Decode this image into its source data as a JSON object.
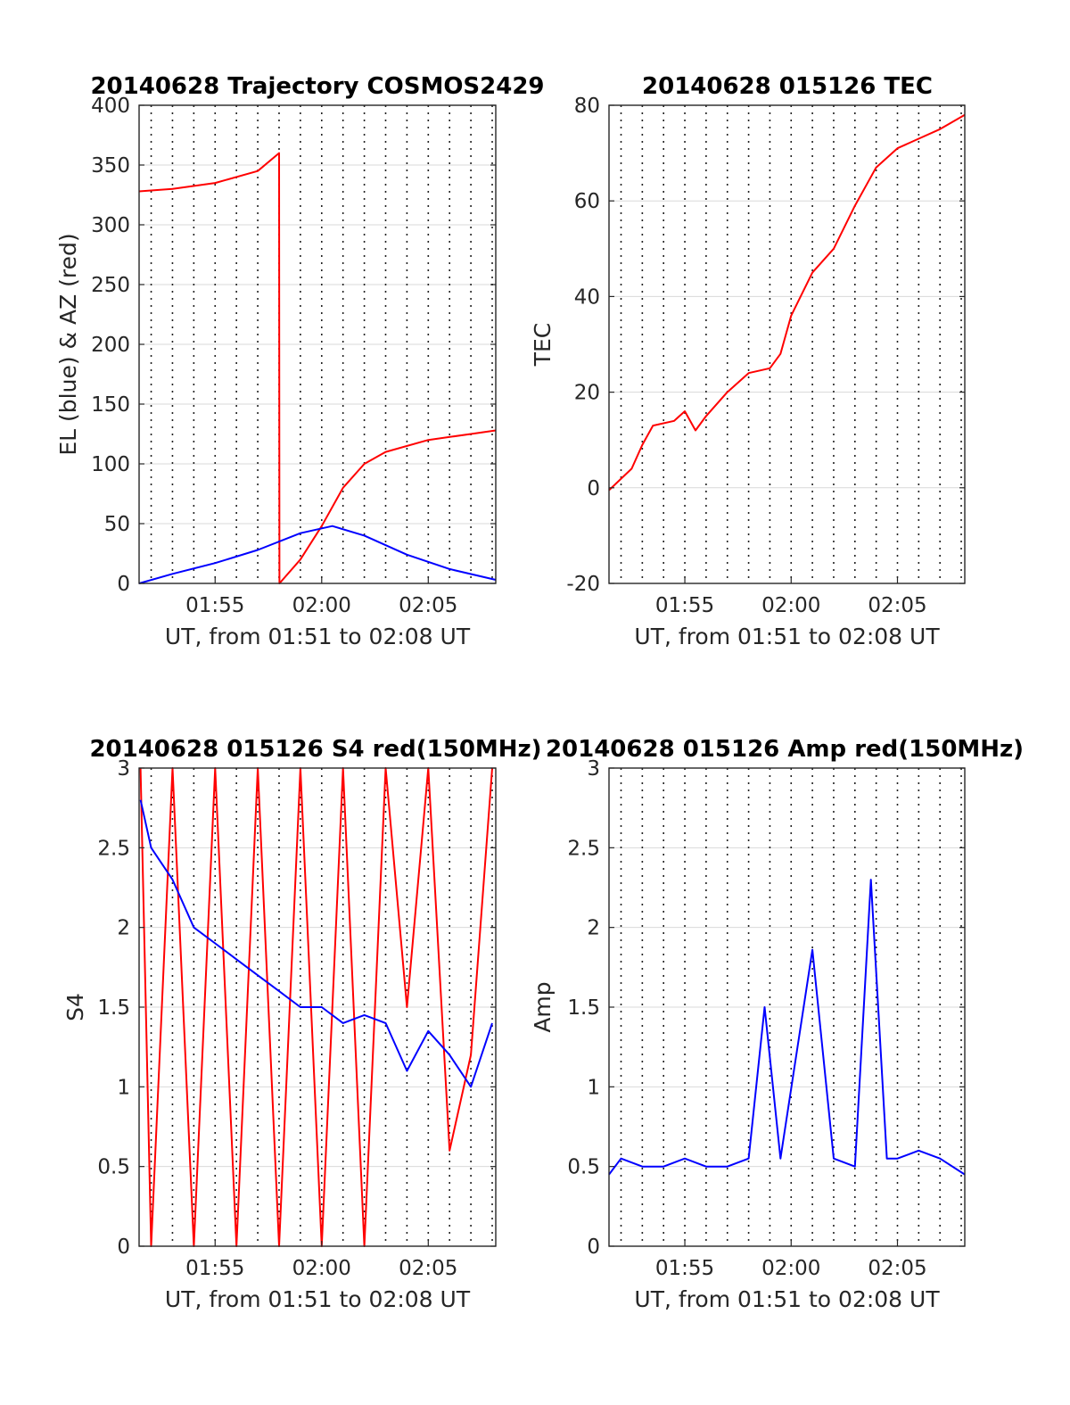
{
  "x_tick_labels": [
    "01:55",
    "02:00",
    "02:05"
  ],
  "chart_data": [
    {
      "id": "trajectory",
      "type": "line",
      "title": "20140628 Trajectory COSMOS2429",
      "xlabel": "UT, from 01:51 to 02:08 UT",
      "ylabel": "EL (blue) & AZ (red)",
      "xlim": [
        "01:51:26",
        "02:08:10"
      ],
      "ylim": [
        0,
        400
      ],
      "yticks": [
        0,
        50,
        100,
        150,
        200,
        250,
        300,
        350,
        400
      ],
      "xticks": [
        "01:55",
        "02:00",
        "02:05"
      ],
      "grid": true,
      "series": [
        {
          "color": "#ff0000",
          "x": [
            "01:51:26",
            "01:53:00",
            "01:55:00",
            "01:57:00",
            "01:58:00",
            "01:58:01",
            "01:59:00",
            "02:00:00",
            "02:01:00",
            "02:02:00",
            "02:03:00",
            "02:05:00",
            "02:07:00",
            "02:08:10"
          ],
          "values": [
            328,
            330,
            335,
            345,
            360,
            0,
            20,
            48,
            80,
            100,
            110,
            120,
            125,
            128
          ]
        },
        {
          "color": "#0000ff",
          "x": [
            "01:51:26",
            "01:53:00",
            "01:55:00",
            "01:57:00",
            "01:59:00",
            "02:00:30",
            "02:02:00",
            "02:04:00",
            "02:06:00",
            "02:08:10"
          ],
          "values": [
            0,
            8,
            17,
            28,
            42,
            48,
            40,
            24,
            12,
            3
          ]
        }
      ]
    },
    {
      "id": "tec",
      "type": "line",
      "title": "20140628 015126 TEC",
      "xlabel": "UT, from 01:51 to 02:08 UT",
      "ylabel": "TEC",
      "xlim": [
        "01:51:26",
        "02:08:10"
      ],
      "ylim": [
        -20,
        80
      ],
      "yticks": [
        -20,
        0,
        20,
        40,
        60,
        80
      ],
      "xticks": [
        "01:55",
        "02:00",
        "02:05"
      ],
      "grid": true,
      "series": [
        {
          "color": "#ff0000",
          "x": [
            "01:51:26",
            "01:52:30",
            "01:53:00",
            "01:53:30",
            "01:54:30",
            "01:55:00",
            "01:55:30",
            "01:56:00",
            "01:57:00",
            "01:58:00",
            "01:59:00",
            "01:59:30",
            "02:00:00",
            "02:01:00",
            "02:02:00",
            "02:03:00",
            "02:04:00",
            "02:05:00",
            "02:06:00",
            "02:07:00",
            "02:08:10"
          ],
          "values": [
            -0.5,
            4,
            9,
            13,
            14,
            16,
            12,
            15,
            20,
            24,
            25,
            28,
            36,
            45,
            50,
            59,
            67,
            71,
            73,
            75,
            78
          ]
        }
      ]
    },
    {
      "id": "s4",
      "type": "line",
      "title": "20140628 015126 S4 red(150MHz)",
      "xlabel": "UT, from 01:51 to 02:08 UT",
      "ylabel": "S4",
      "xlim": [
        "01:51:26",
        "02:08:10"
      ],
      "ylim": [
        0,
        3
      ],
      "yticks": [
        0,
        0.5,
        1,
        1.5,
        2,
        2.5,
        3
      ],
      "xticks": [
        "01:55",
        "02:00",
        "02:05"
      ],
      "grid": true,
      "series": [
        {
          "color": "#ff0000",
          "x": [
            "01:51:30",
            "01:52:00",
            "01:53:00",
            "01:54:00",
            "01:55:00",
            "01:56:00",
            "01:57:00",
            "01:58:00",
            "01:59:00",
            "02:00:00",
            "02:01:00",
            "02:02:00",
            "02:03:00",
            "02:04:00",
            "02:05:00",
            "02:06:00",
            "02:07:00",
            "02:08:00"
          ],
          "values": [
            3,
            0,
            3,
            0,
            3,
            0,
            3,
            0,
            3,
            0,
            3,
            0,
            3,
            1.5,
            3,
            0.6,
            1.2,
            3
          ]
        },
        {
          "color": "#0000ff",
          "x": [
            "01:51:30",
            "01:52:00",
            "01:53:00",
            "01:54:00",
            "01:55:00",
            "01:56:00",
            "01:57:00",
            "01:58:00",
            "01:59:00",
            "02:00:00",
            "02:01:00",
            "02:02:00",
            "02:03:00",
            "02:04:00",
            "02:05:00",
            "02:06:00",
            "02:07:00",
            "02:08:00"
          ],
          "values": [
            2.8,
            2.5,
            2.3,
            2.0,
            1.9,
            1.8,
            1.7,
            1.6,
            1.5,
            1.5,
            1.4,
            1.45,
            1.4,
            1.1,
            1.35,
            1.2,
            1.0,
            1.4
          ]
        }
      ]
    },
    {
      "id": "amp",
      "type": "line",
      "title": "20140628 015126 Amp red(150MHz)",
      "xlabel": "UT, from 01:51 to 02:08 UT",
      "ylabel": "Amp",
      "xlim": [
        "01:51:26",
        "02:08:10"
      ],
      "ylim": [
        0,
        3
      ],
      "yticks": [
        0,
        0.5,
        1,
        1.5,
        2,
        2.5,
        3
      ],
      "xticks": [
        "01:55",
        "02:00",
        "02:05"
      ],
      "grid": true,
      "series": [
        {
          "color": "#0000ff",
          "x": [
            "01:51:26",
            "01:52:00",
            "01:53:00",
            "01:54:00",
            "01:55:00",
            "01:56:00",
            "01:57:00",
            "01:58:00",
            "01:58:45",
            "01:59:30",
            "02:01:00",
            "02:02:00",
            "02:03:00",
            "02:03:45",
            "02:04:30",
            "02:05:00",
            "02:06:00",
            "02:07:00",
            "02:08:10"
          ],
          "values": [
            0.45,
            0.55,
            0.5,
            0.5,
            0.55,
            0.5,
            0.5,
            0.55,
            1.5,
            0.55,
            1.86,
            0.55,
            0.5,
            2.3,
            0.55,
            0.55,
            0.6,
            0.55,
            0.45
          ]
        }
      ]
    }
  ]
}
